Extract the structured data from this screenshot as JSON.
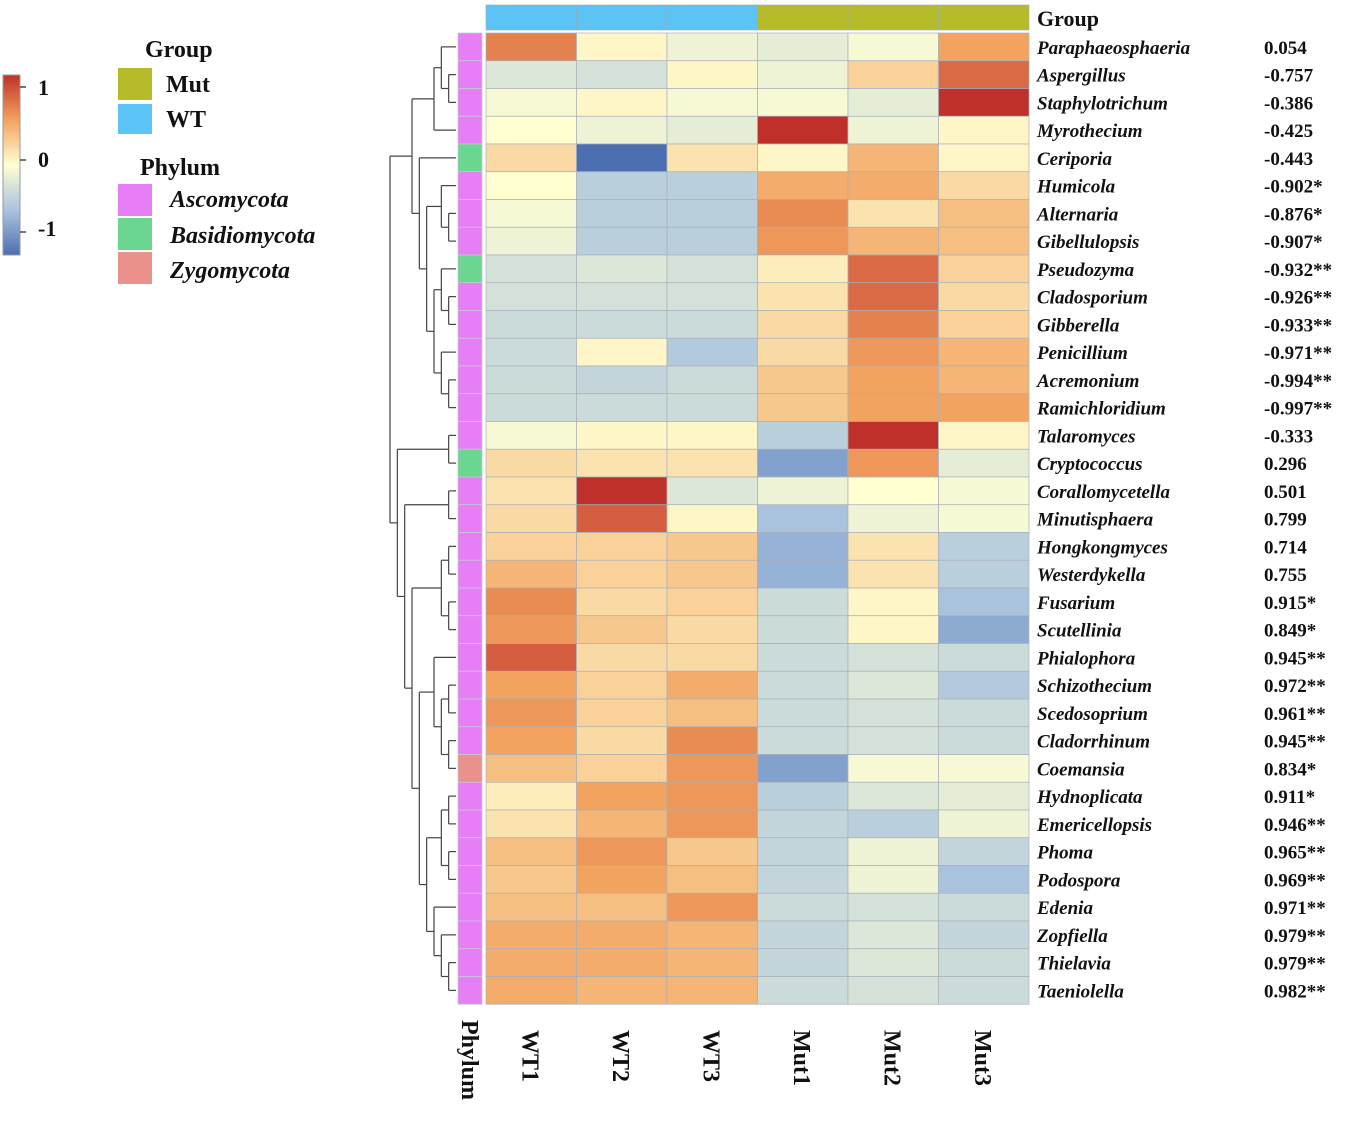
{
  "chart_data": {
    "type": "heatmap",
    "title": "",
    "columns": [
      "WT1",
      "WT2",
      "WT3",
      "Mut1",
      "Mut2",
      "Mut3"
    ],
    "column_groups": [
      "WT",
      "WT",
      "WT",
      "Mut",
      "Mut",
      "Mut"
    ],
    "phylum_column_label": "Phylum",
    "group_header_label": "Group",
    "value_range": [
      -1,
      1
    ],
    "scale_ticks": [
      "1",
      "0",
      "-1"
    ],
    "colors": {
      "low": "#4b6fb1",
      "mid": "#ffffd2",
      "high": "#c0302a",
      "Mut": "#b6bb2a",
      "WT": "#5cc4f5",
      "Ascomycota": "#e67ef5",
      "Basidiomycota": "#6ad68f",
      "Zygomycota": "#e9918a"
    },
    "legend_group": {
      "title": "Group",
      "items": [
        {
          "label": "Mut",
          "color": "#b6bb2a"
        },
        {
          "label": "WT",
          "color": "#5cc4f5"
        }
      ]
    },
    "legend_phylum": {
      "title": "Phylum",
      "items": [
        {
          "label": "Ascomycota",
          "color": "#e67ef5"
        },
        {
          "label": "Basidiomycota",
          "color": "#6ad68f"
        },
        {
          "label": "Zygomycota",
          "color": "#e9918a"
        }
      ]
    },
    "rows": [
      {
        "genus": "Paraphaeosphaeria",
        "phylum": "Ascomycota",
        "corr": "0.054",
        "values": [
          0.65,
          0.05,
          -0.1,
          -0.15,
          -0.05,
          0.5
        ]
      },
      {
        "genus": "Aspergillus",
        "phylum": "Ascomycota",
        "corr": "-0.757",
        "values": [
          -0.2,
          -0.25,
          0.05,
          -0.1,
          0.25,
          0.75
        ]
      },
      {
        "genus": "Staphylotrichum",
        "phylum": "Ascomycota",
        "corr": "-0.386",
        "values": [
          -0.05,
          0.05,
          -0.05,
          -0.05,
          -0.15,
          1.0
        ]
      },
      {
        "genus": "Myrothecium",
        "phylum": "Ascomycota",
        "corr": "-0.425",
        "values": [
          0.0,
          -0.1,
          -0.15,
          1.0,
          -0.1,
          0.05
        ]
      },
      {
        "genus": "Ceriporia",
        "phylum": "Basidiomycota",
        "corr": "-0.443",
        "values": [
          0.2,
          -1.0,
          0.15,
          0.05,
          0.4,
          0.05
        ]
      },
      {
        "genus": "Humicola",
        "phylum": "Ascomycota",
        "corr": "-0.902*",
        "values": [
          0.0,
          -0.4,
          -0.4,
          0.45,
          0.45,
          0.2
        ]
      },
      {
        "genus": "Alternaria",
        "phylum": "Ascomycota",
        "corr": "-0.876*",
        "values": [
          -0.05,
          -0.4,
          -0.4,
          0.6,
          0.15,
          0.35
        ]
      },
      {
        "genus": "Gibellulopsis",
        "phylum": "Ascomycota",
        "corr": "-0.907*",
        "values": [
          -0.1,
          -0.4,
          -0.4,
          0.55,
          0.4,
          0.35
        ]
      },
      {
        "genus": "Pseudozyma",
        "phylum": "Basidiomycota",
        "corr": "-0.932**",
        "values": [
          -0.25,
          -0.2,
          -0.25,
          0.1,
          0.75,
          0.25
        ]
      },
      {
        "genus": "Cladosporium",
        "phylum": "Ascomycota",
        "corr": "-0.926**",
        "values": [
          -0.25,
          -0.25,
          -0.25,
          0.15,
          0.75,
          0.2
        ]
      },
      {
        "genus": "Gibberella",
        "phylum": "Ascomycota",
        "corr": "-0.933**",
        "values": [
          -0.3,
          -0.3,
          -0.3,
          0.2,
          0.65,
          0.25
        ]
      },
      {
        "genus": "Penicillium",
        "phylum": "Ascomycota",
        "corr": "-0.971**",
        "values": [
          -0.3,
          0.05,
          -0.45,
          0.2,
          0.55,
          0.4
        ]
      },
      {
        "genus": "Acremonium",
        "phylum": "Ascomycota",
        "corr": "-0.994**",
        "values": [
          -0.3,
          -0.35,
          -0.3,
          0.3,
          0.5,
          0.4
        ]
      },
      {
        "genus": "Ramichloridium",
        "phylum": "Ascomycota",
        "corr": "-0.997**",
        "values": [
          -0.3,
          -0.3,
          -0.3,
          0.3,
          0.5,
          0.5
        ]
      },
      {
        "genus": "Talaromyces",
        "phylum": "Ascomycota",
        "corr": "-0.333",
        "values": [
          -0.05,
          0.05,
          0.05,
          -0.4,
          1.0,
          0.05
        ]
      },
      {
        "genus": "Cryptococcus",
        "phylum": "Basidiomycota",
        "corr": "0.296",
        "values": [
          0.2,
          0.15,
          0.15,
          -0.7,
          0.55,
          -0.15
        ]
      },
      {
        "genus": "Corallomycetella",
        "phylum": "Ascomycota",
        "corr": "0.501",
        "values": [
          0.15,
          1.0,
          -0.2,
          -0.1,
          0.0,
          -0.05
        ]
      },
      {
        "genus": "Minutisphaera",
        "phylum": "Ascomycota",
        "corr": "0.799",
        "values": [
          0.2,
          0.8,
          0.05,
          -0.5,
          -0.1,
          -0.05
        ]
      },
      {
        "genus": "Hongkongmyces",
        "phylum": "Ascomycota",
        "corr": "0.714",
        "values": [
          0.25,
          0.25,
          0.3,
          -0.6,
          0.15,
          -0.4
        ]
      },
      {
        "genus": "Westerdykella",
        "phylum": "Ascomycota",
        "corr": "0.755",
        "values": [
          0.4,
          0.25,
          0.3,
          -0.6,
          0.15,
          -0.4
        ]
      },
      {
        "genus": "Fusarium",
        "phylum": "Ascomycota",
        "corr": "0.915*",
        "values": [
          0.6,
          0.2,
          0.25,
          -0.3,
          0.05,
          -0.5
        ]
      },
      {
        "genus": "Scutellinia",
        "phylum": "Ascomycota",
        "corr": "0.849*",
        "values": [
          0.55,
          0.3,
          0.2,
          -0.3,
          0.05,
          -0.65
        ]
      },
      {
        "genus": "Phialophora",
        "phylum": "Ascomycota",
        "corr": "0.945**",
        "values": [
          0.8,
          0.2,
          0.2,
          -0.3,
          -0.25,
          -0.3
        ]
      },
      {
        "genus": "Schizothecium",
        "phylum": "Ascomycota",
        "corr": "0.972**",
        "values": [
          0.5,
          0.25,
          0.45,
          -0.3,
          -0.2,
          -0.45
        ]
      },
      {
        "genus": "Scedosoprium",
        "phylum": "Ascomycota",
        "corr": "0.961**",
        "values": [
          0.55,
          0.25,
          0.35,
          -0.3,
          -0.25,
          -0.3
        ]
      },
      {
        "genus": "Cladorrhinum",
        "phylum": "Ascomycota",
        "corr": "0.945**",
        "values": [
          0.5,
          0.2,
          0.6,
          -0.3,
          -0.25,
          -0.3
        ]
      },
      {
        "genus": "Coemansia",
        "phylum": "Zygomycota",
        "corr": "0.834*",
        "values": [
          0.35,
          0.25,
          0.55,
          -0.7,
          -0.05,
          -0.05
        ]
      },
      {
        "genus": "Hydnoplicata",
        "phylum": "Ascomycota",
        "corr": "0.911*",
        "values": [
          0.1,
          0.5,
          0.55,
          -0.4,
          -0.2,
          -0.15
        ]
      },
      {
        "genus": "Emericellopsis",
        "phylum": "Ascomycota",
        "corr": "0.946**",
        "values": [
          0.15,
          0.4,
          0.55,
          -0.35,
          -0.4,
          -0.1
        ]
      },
      {
        "genus": "Phoma",
        "phylum": "Ascomycota",
        "corr": "0.965**",
        "values": [
          0.35,
          0.55,
          0.3,
          -0.35,
          -0.1,
          -0.35
        ]
      },
      {
        "genus": "Podospora",
        "phylum": "Ascomycota",
        "corr": "0.969**",
        "values": [
          0.3,
          0.5,
          0.35,
          -0.35,
          -0.1,
          -0.5
        ]
      },
      {
        "genus": "Edenia",
        "phylum": "Ascomycota",
        "corr": "0.971**",
        "values": [
          0.35,
          0.35,
          0.55,
          -0.3,
          -0.25,
          -0.3
        ]
      },
      {
        "genus": "Zopfiella",
        "phylum": "Ascomycota",
        "corr": "0.979**",
        "values": [
          0.45,
          0.45,
          0.4,
          -0.35,
          -0.2,
          -0.35
        ]
      },
      {
        "genus": "Thielavia",
        "phylum": "Ascomycota",
        "corr": "0.979**",
        "values": [
          0.45,
          0.45,
          0.4,
          -0.35,
          -0.2,
          -0.3
        ]
      },
      {
        "genus": "Taeniolella",
        "phylum": "Ascomycota",
        "corr": "0.982**",
        "values": [
          0.45,
          0.4,
          0.4,
          -0.3,
          -0.25,
          -0.3
        ]
      }
    ],
    "row_dendrogram_newick": "((((Paraphaeosphaeria,(Aspergillus,Staphylotrichum)),Myrothecium),(Ceriporia,((Humicola,(Alternaria,Gibellulopsis)),((Pseudozyma,(Cladosporium,Gibberella)),(Penicillium,(Acremonium,Ramichloridium)))))),((Talaromyces,Cryptococcus),((Corallomycetella,Minutisphaera),(((Hongkongmyces,Westerdykella),(Fusarium,Scutellinia)),((Phialophora,((Schizothecium,Scedosoprium),(Cladorrhinum,Coemansia))),(((Hydnoplicata,Emericellopsis),(Phoma,Podospora)),(Edenia,(Zopfiella,(Thielavia,Taeniolella)))))))));"
  }
}
